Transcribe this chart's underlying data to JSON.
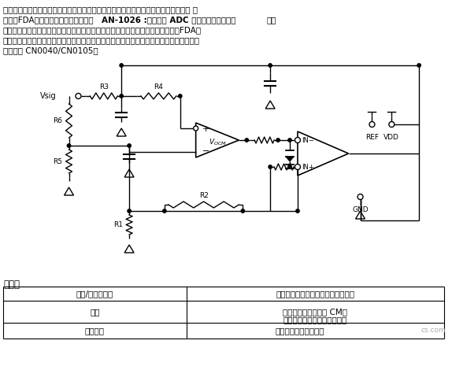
{
  "para_line1": "用这种方法实现的单端转差分具有最低的噪声，适合单电源类应用，可耐受阻性输入。 有",
  "para_line2a": "关采用FDA的设计详情可参见应用笔记 ",
  "para_line2b": "AN-1026 :高速差分 ADC 驱动器设计考虑因素",
  "para_line2c": "。就",
  "para_line3": "噪声性能而言，似乎显然应该采用这种方法；然而，有些时候可能并不存在合适的FDA，",
  "para_line4": "而使用双放大器的定制电路可能更为合适。就单个放大器而言，可选产品种类要多得多。示",
  "para_line5": "例可参见 CN0040/CN0105。",
  "section_title": "利与弊",
  "th_left": "裕量/单电源供电",
  "th_right": "适合单电源供电，因为采用反相配置",
  "tr1_left": "增益",
  "tr1_right1": "允许衰减增益和可变 CM。",
  "tr1_right2": "最简单的电平转换解决方案。",
  "tr2_left": "输入阻抗",
  "tr2_right": "取决于所用的输入电阻",
  "watermark": "cs.com",
  "bg": "#ffffff"
}
